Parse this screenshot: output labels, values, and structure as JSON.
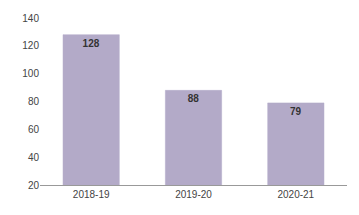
{
  "chart_data": {
    "type": "bar",
    "categories": [
      "2018-19",
      "2019-20",
      "2020-21"
    ],
    "values": [
      128,
      88,
      79
    ],
    "color": "#b3aac8",
    "ylim": [
      20,
      140
    ],
    "yticks": [
      20,
      40,
      60,
      80,
      100,
      120,
      140
    ],
    "grid": false,
    "data_labels": true
  }
}
